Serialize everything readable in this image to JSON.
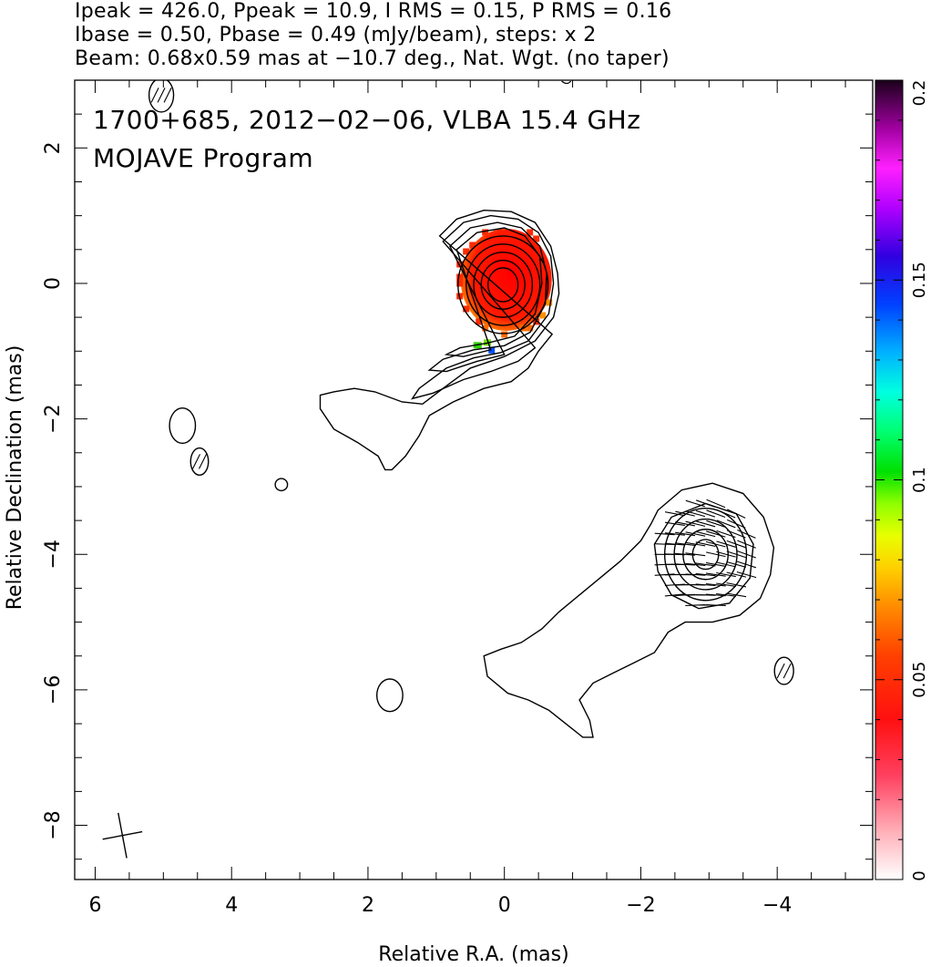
{
  "header": {
    "line1": "Ipeak = 426.0, Ppeak = 10.9, I RMS = 0.15, P RMS = 0.16",
    "line2": "Ibase = 0.50, Pbase = 0.49 (mJy/beam), steps: x 2",
    "line3": "Beam: 0.68x0.59 mas at −10.7 deg., Nat. Wgt. (no taper)"
  },
  "chart_data": {
    "type": "heatmap",
    "title": "1700+685, 2012−02−06, VLBA 15.4 GHz",
    "subtitle": "MOJAVE Program",
    "xlabel": "Relative R.A. (mas)",
    "ylabel": "Relative Declination (mas)",
    "xlim": [
      6.3,
      -5.4
    ],
    "ylim": [
      -8.8,
      3.0
    ],
    "x_ticks": [
      6,
      4,
      2,
      0,
      -2,
      -4
    ],
    "x_tick_labels": [
      "6",
      "4",
      "2",
      "0",
      "−2",
      "−4"
    ],
    "y_ticks": [
      2,
      0,
      -2,
      -4,
      -6,
      -8
    ],
    "y_tick_labels": [
      "2",
      "0",
      "−2",
      "−4",
      "−6",
      "−8"
    ],
    "colorbar": {
      "range": [
        0,
        0.2
      ],
      "ticks": [
        0,
        0.05,
        0.1,
        0.15,
        0.2
      ],
      "tick_labels": [
        "0",
        "0.05",
        "0.1",
        "0.15",
        "0.2"
      ]
    },
    "components": [
      {
        "ra": 0.0,
        "dec": 0.0,
        "contour_levels": 9,
        "polarized": true
      },
      {
        "ra": -2.95,
        "dec": -4.0,
        "contour_levels": 5,
        "polarized": true
      }
    ],
    "beam": {
      "major_mas": 0.68,
      "minor_mas": 0.59,
      "pa_deg": -10.7
    }
  }
}
